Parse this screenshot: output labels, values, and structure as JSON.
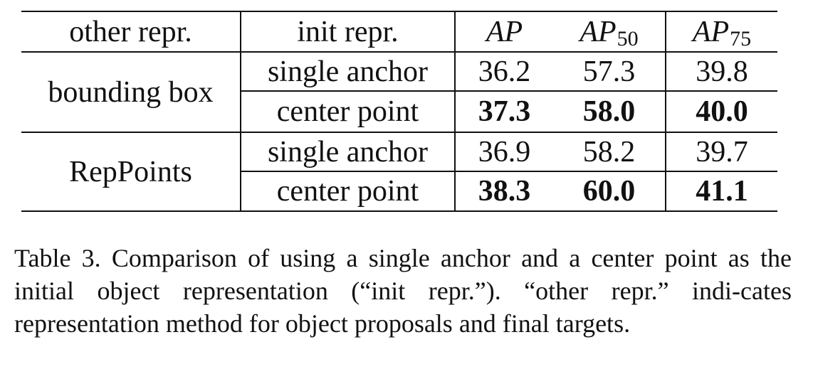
{
  "table": {
    "header": {
      "other": "other repr.",
      "init": "init repr.",
      "ap": "AP",
      "ap50_main": "AP",
      "ap50_sub": "50",
      "ap75_main": "AP",
      "ap75_sub": "75"
    },
    "groups": [
      {
        "name": "bounding box",
        "rows": [
          {
            "init": "single anchor",
            "ap": "36.2",
            "ap50": "57.3",
            "ap75": "39.8",
            "bold": false
          },
          {
            "init": "center point",
            "ap": "37.3",
            "ap50": "58.0",
            "ap75": "40.0",
            "bold": true
          }
        ]
      },
      {
        "name": "RepPoints",
        "rows": [
          {
            "init": "single anchor",
            "ap": "36.9",
            "ap50": "58.2",
            "ap75": "39.7",
            "bold": false
          },
          {
            "init": "center point",
            "ap": "38.3",
            "ap50": "60.0",
            "ap75": "41.1",
            "bold": true
          }
        ]
      }
    ]
  },
  "caption": "Table 3. Comparison of using a single anchor and a center point as the initial object representation (“init repr.”). “other repr.” indi-cates representation method for object proposals and final targets."
}
